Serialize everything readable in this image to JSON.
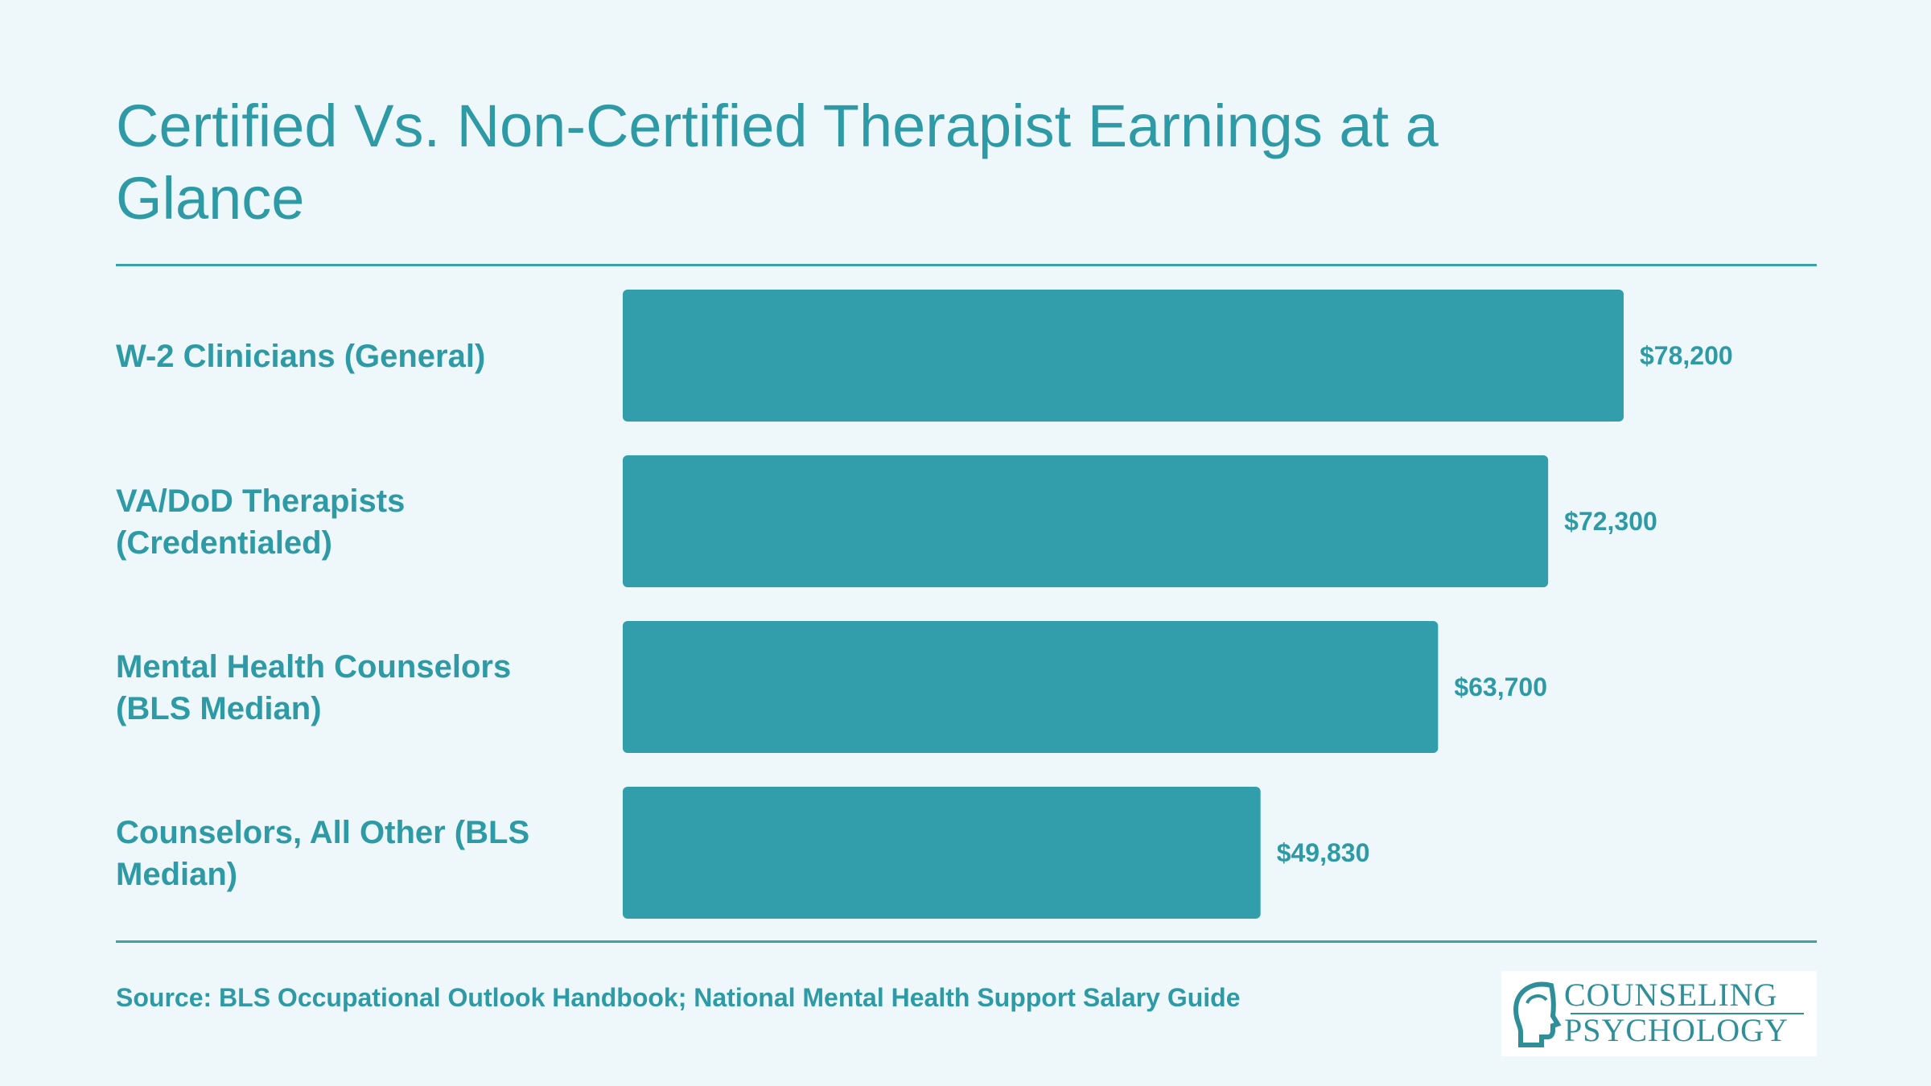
{
  "title": "Certified Vs. Non-Certified Therapist Earnings at a Glance",
  "source": "Source: BLS Occupational Outlook Handbook; National Mental Health Support Salary Guide",
  "logo": {
    "line1": "COUNSELING",
    "line2": "PSYCHOLOGY"
  },
  "colors": {
    "accent": "#2e9aa6",
    "bar": "#329dab",
    "background": "#eef7f9"
  },
  "chart_data": {
    "type": "bar",
    "orientation": "horizontal",
    "categories": [
      [
        "W-2 Clinicians (General)"
      ],
      [
        "VA/DoD Therapists",
        "(Credentialed)"
      ],
      [
        "Mental Health Counselors",
        "(BLS Median)"
      ],
      [
        "Counselors, All Other (BLS",
        "Median)"
      ]
    ],
    "values": [
      78200,
      72300,
      63700,
      49830
    ],
    "value_labels": [
      "$78,200",
      "$72,300",
      "$63,700",
      "$49,830"
    ],
    "title": "Certified Vs. Non-Certified Therapist Earnings at a Glance",
    "xlabel": "",
    "ylabel": "",
    "xlim": [
      0,
      78200
    ],
    "grid": false
  }
}
